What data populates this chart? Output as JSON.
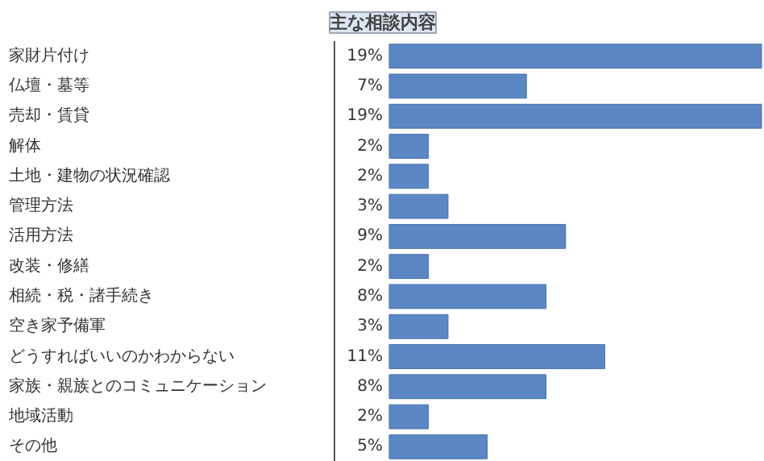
{
  "chart_data": {
    "type": "bar",
    "orientation": "horizontal",
    "title": "主な相談内容",
    "categories": [
      "家財片付け",
      "仏壇・墓等",
      "売却・賃貸",
      "解体",
      "土地・建物の状況確認",
      "管理方法",
      "活用方法",
      "改装・修繕",
      "相続・税・諸手続き",
      "空き家予備軍",
      "どうすればいいのかわからない",
      "家族・親族とのコミュニケーション",
      "地域活動",
      "その他"
    ],
    "values": [
      19,
      7,
      19,
      2,
      2,
      3,
      9,
      2,
      8,
      3,
      11,
      8,
      2,
      5
    ],
    "value_labels": [
      "19%",
      "7%",
      "19%",
      "2%",
      "2%",
      "3%",
      "9%",
      "2%",
      "8%",
      "3%",
      "11%",
      "8%",
      "2%",
      "5%"
    ],
    "color": "#5b87c5"
  }
}
